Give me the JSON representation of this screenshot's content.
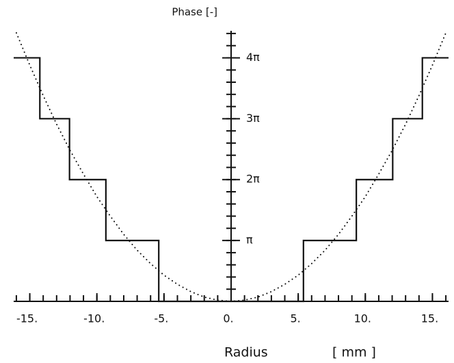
{
  "chart_data": {
    "type": "line",
    "y_label": "Phase [-]",
    "x_label": "Radius",
    "x_unit": "[ mm ]",
    "xlim": [
      -16.2,
      16.2
    ],
    "ylim": [
      0,
      4.5
    ],
    "xticks": [
      {
        "value": -15,
        "label": "-15."
      },
      {
        "value": -10,
        "label": "-10."
      },
      {
        "value": -5,
        "label": "-5."
      },
      {
        "value": 0,
        "label": "0."
      },
      {
        "value": 5,
        "label": "5."
      },
      {
        "value": 10,
        "label": "10."
      },
      {
        "value": 15,
        "label": "15."
      }
    ],
    "yticks": [
      {
        "value": 1,
        "label": "π"
      },
      {
        "value": 2,
        "label": "2π"
      },
      {
        "value": 3,
        "label": "3π"
      },
      {
        "value": 4,
        "label": "4π"
      }
    ],
    "x_minor_step": 1,
    "y_minor_step": 0.2,
    "series": [
      {
        "style": "solid",
        "color": "#111111",
        "x": [
          -16.2,
          -14.25,
          -14.25,
          -12.04,
          -12.04,
          -9.33,
          -9.33,
          -5.39,
          -5.39,
          5.39,
          5.39,
          9.33,
          9.33,
          12.04,
          12.04,
          14.25,
          14.25,
          16.2
        ],
        "values": [
          4,
          4,
          3,
          3,
          2,
          2,
          1,
          1,
          0,
          0,
          1,
          1,
          2,
          2,
          3,
          3,
          4,
          4
        ]
      },
      {
        "style": "dotted",
        "color": "#111111",
        "x": [
          -16,
          -15,
          -14,
          -13,
          -12,
          -11,
          -10,
          -9,
          -8,
          -7,
          -6,
          -5,
          -4,
          -3,
          -2,
          -1,
          0,
          1,
          2,
          3,
          4,
          5,
          6,
          7,
          8,
          9,
          10,
          11,
          12,
          13,
          14,
          15,
          16
        ],
        "values": [
          4.41,
          3.88,
          3.38,
          2.91,
          2.48,
          2.09,
          1.72,
          1.4,
          1.1,
          0.84,
          0.62,
          0.43,
          0.28,
          0.16,
          0.07,
          0.02,
          0,
          0.02,
          0.07,
          0.16,
          0.28,
          0.43,
          0.62,
          0.84,
          1.1,
          1.4,
          1.72,
          2.09,
          2.48,
          2.91,
          3.38,
          3.88,
          4.41
        ]
      }
    ]
  }
}
